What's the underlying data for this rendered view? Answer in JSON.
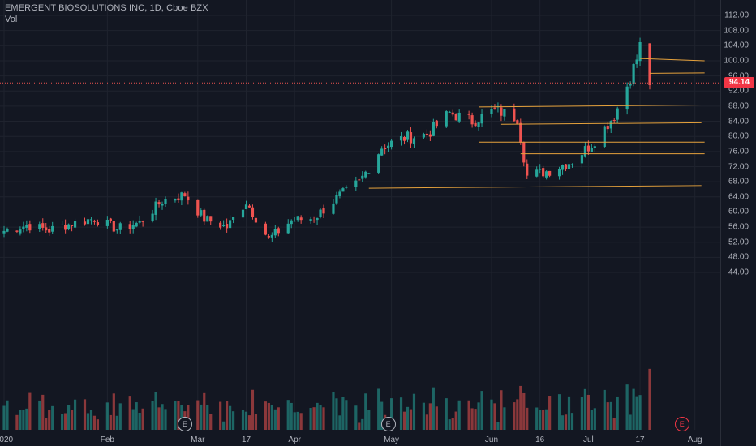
{
  "header": {
    "title": "EMERGENT BIOSOLUTIONS INC, 1D, Cboe BZX",
    "volume_label": "Vol"
  },
  "price_tag": {
    "value": "94.14",
    "color": "#f23645"
  },
  "colors": {
    "up": "#26a69a",
    "down": "#ef5350",
    "level": "#e6a23c",
    "grid": "#1f232e",
    "background": "#131722"
  },
  "y_axis": {
    "labels": [
      "112.00",
      "108.00",
      "104.00",
      "100.00",
      "96.00",
      "92.00",
      "88.00",
      "84.00",
      "80.00",
      "76.00",
      "72.00",
      "68.00",
      "64.00",
      "60.00",
      "56.00",
      "52.00",
      "48.00",
      "44.00"
    ]
  },
  "x_axis": {
    "labels": [
      {
        "text": "2020",
        "date": "2020-01-02"
      },
      {
        "text": "Feb",
        "date": "2020-02-03"
      },
      {
        "text": "Mar",
        "date": "2020-03-02"
      },
      {
        "text": "17",
        "date": "2020-03-17"
      },
      {
        "text": "Apr",
        "date": "2020-04-01"
      },
      {
        "text": "May",
        "date": "2020-05-01"
      },
      {
        "text": "Jun",
        "date": "2020-06-01"
      },
      {
        "text": "16",
        "date": "2020-06-16"
      },
      {
        "text": "Jul",
        "date": "2020-07-01"
      },
      {
        "text": "17",
        "date": "2020-07-17"
      },
      {
        "text": "Aug",
        "date": "2020-08-03"
      }
    ]
  },
  "earnings_markers": [
    {
      "label": "E",
      "date": "2020-02-27",
      "style": "neutral"
    },
    {
      "label": "E",
      "date": "2020-04-30",
      "style": "neutral"
    },
    {
      "label": "E",
      "date": "2020-07-30",
      "style": "future"
    }
  ],
  "chart_data": {
    "type": "candlestick",
    "title": "EMERGENT BIOSOLUTIONS INC, 1D, Cboe BZX",
    "y_range": [
      42,
      114
    ],
    "last_price": 94.14,
    "close_series": [
      {
        "date": "2020-01-02",
        "close": 55.0
      },
      {
        "date": "2020-01-09",
        "close": 56.5
      },
      {
        "date": "2020-01-16",
        "close": 55.2
      },
      {
        "date": "2020-01-23",
        "close": 57.0
      },
      {
        "date": "2020-01-30",
        "close": 58.3
      },
      {
        "date": "2020-02-06",
        "close": 55.5
      },
      {
        "date": "2020-02-13",
        "close": 57.2
      },
      {
        "date": "2020-02-20",
        "close": 63.0
      },
      {
        "date": "2020-02-27",
        "close": 64.6
      },
      {
        "date": "2020-03-04",
        "close": 58.2
      },
      {
        "date": "2020-03-11",
        "close": 56.0
      },
      {
        "date": "2020-03-17",
        "close": 62.8
      },
      {
        "date": "2020-03-24",
        "close": 52.8
      },
      {
        "date": "2020-03-31",
        "close": 57.8
      },
      {
        "date": "2020-04-07",
        "close": 58.4
      },
      {
        "date": "2020-04-14",
        "close": 63.7
      },
      {
        "date": "2020-04-21",
        "close": 67.8
      },
      {
        "date": "2020-04-28",
        "close": 77.2
      },
      {
        "date": "2020-05-05",
        "close": 79.6
      },
      {
        "date": "2020-05-12",
        "close": 80.5
      },
      {
        "date": "2020-05-19",
        "close": 86.2
      },
      {
        "date": "2020-05-26",
        "close": 84.0
      },
      {
        "date": "2020-06-02",
        "close": 87.0
      },
      {
        "date": "2020-06-09",
        "close": 84.9
      },
      {
        "date": "2020-06-12",
        "close": 69.5
      },
      {
        "date": "2020-06-19",
        "close": 71.0
      },
      {
        "date": "2020-06-26",
        "close": 73.5
      },
      {
        "date": "2020-07-02",
        "close": 78.0
      },
      {
        "date": "2020-07-09",
        "close": 85.5
      },
      {
        "date": "2020-07-13",
        "close": 93.5
      },
      {
        "date": "2020-07-16",
        "close": 100.5
      },
      {
        "date": "2020-07-17",
        "close": 104.0
      },
      {
        "date": "2020-07-20",
        "close": 94.14
      }
    ],
    "horizontal_levels": [
      {
        "from": "2020-07-17",
        "to": "2020-08-06",
        "value": 100.6,
        "end_value": 100.0
      },
      {
        "from": "2020-07-20",
        "to": "2020-08-06",
        "value": 96.7,
        "end_value": 96.8
      },
      {
        "from": "2020-05-28",
        "to": "2020-08-05",
        "value": 87.8,
        "end_value": 88.3
      },
      {
        "from": "2020-06-04",
        "to": "2020-08-05",
        "value": 83.2,
        "end_value": 83.6
      },
      {
        "from": "2020-05-28",
        "to": "2020-08-06",
        "value": 78.5,
        "end_value": 78.5
      },
      {
        "from": "2020-06-10",
        "to": "2020-08-06",
        "value": 75.4,
        "end_value": 75.4
      },
      {
        "from": "2020-04-24",
        "to": "2020-08-05",
        "value": 66.3,
        "end_value": 67.0
      }
    ],
    "volume_shown": true
  }
}
